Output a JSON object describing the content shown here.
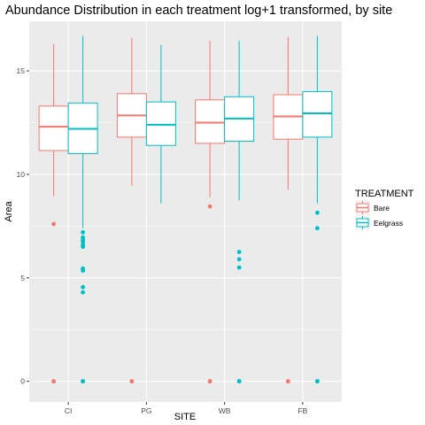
{
  "chart_data": {
    "type": "boxplot",
    "title": "Abundance Distribution in each treatment log+1 transformed, by site",
    "xlabel": "SITE",
    "ylabel": "Area",
    "categories": [
      "CI",
      "PG",
      "WB",
      "FB"
    ],
    "ylim": [
      -1.0,
      17.4
    ],
    "yticks": [
      0,
      5,
      10,
      15
    ],
    "grid": true,
    "legend": {
      "title": "TREATMENT",
      "position": "right"
    },
    "series": [
      {
        "name": "Bare",
        "color": "#F8766D",
        "boxes": [
          {
            "category": "CI",
            "min": 8.95,
            "q1": 11.15,
            "median": 12.3,
            "q3": 13.3,
            "max": 16.3,
            "outliers": [
              7.6,
              0.0,
              0.0
            ]
          },
          {
            "category": "PG",
            "min": 9.45,
            "q1": 11.8,
            "median": 12.85,
            "q3": 13.9,
            "max": 16.6,
            "outliers": [
              0.0,
              0.0
            ]
          },
          {
            "category": "WB",
            "min": 8.9,
            "q1": 11.5,
            "median": 12.5,
            "q3": 13.6,
            "max": 16.45,
            "outliers": [
              8.45,
              0.0,
              0.0
            ]
          },
          {
            "category": "FB",
            "min": 9.25,
            "q1": 11.7,
            "median": 12.8,
            "q3": 13.85,
            "max": 16.65,
            "outliers": [
              0.0,
              0.0
            ]
          }
        ]
      },
      {
        "name": "Eelgrass",
        "color": "#00BFC4",
        "boxes": [
          {
            "category": "CI",
            "min": 7.4,
            "q1": 11.0,
            "median": 12.2,
            "q3": 13.45,
            "max": 16.7,
            "outliers": [
              7.2,
              6.95,
              6.85,
              6.75,
              6.6,
              6.5,
              5.45,
              5.35,
              4.55,
              4.3,
              0.0,
              0.0
            ]
          },
          {
            "category": "PG",
            "min": 8.6,
            "q1": 11.4,
            "median": 12.4,
            "q3": 13.5,
            "max": 16.25,
            "outliers": []
          },
          {
            "category": "WB",
            "min": 8.75,
            "q1": 11.6,
            "median": 12.7,
            "q3": 13.75,
            "max": 16.45,
            "outliers": [
              6.25,
              5.9,
              5.5,
              0.0,
              0.0
            ]
          },
          {
            "category": "FB",
            "min": 8.6,
            "q1": 11.8,
            "median": 12.95,
            "q3": 14.0,
            "max": 16.7,
            "outliers": [
              8.15,
              7.4,
              0.0,
              0.0
            ]
          }
        ]
      }
    ]
  }
}
